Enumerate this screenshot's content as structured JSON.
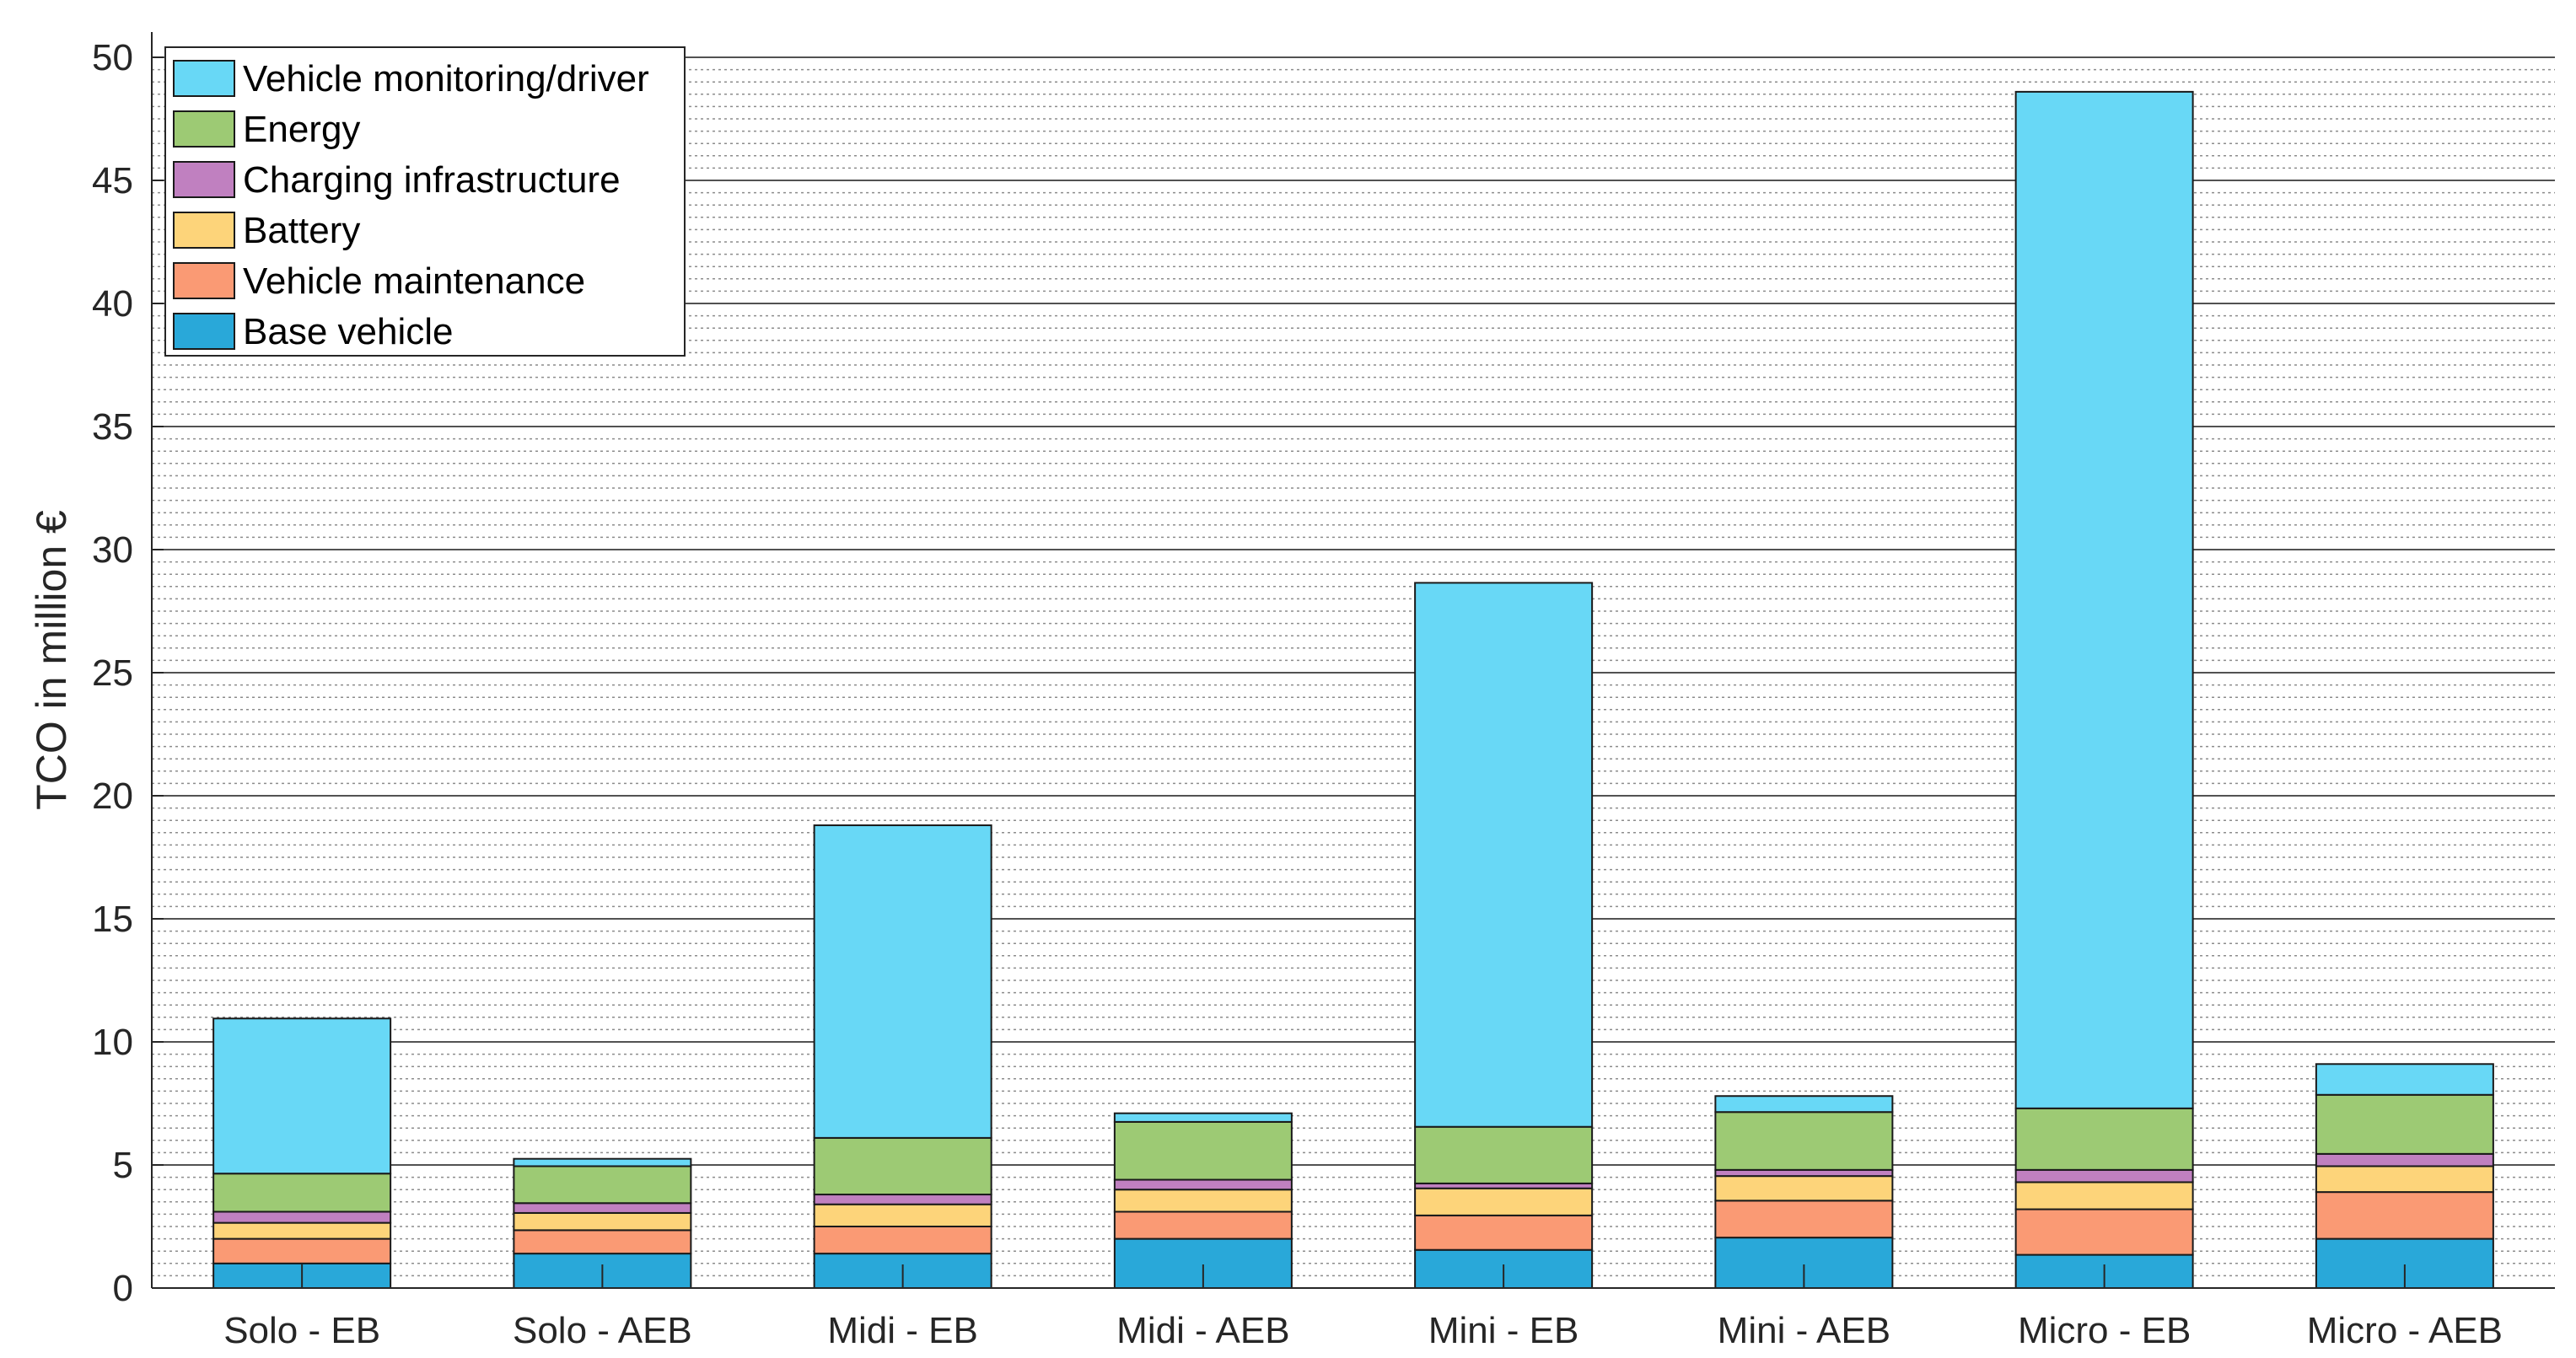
{
  "chart_data": {
    "type": "bar",
    "stacked": true,
    "title": "",
    "xlabel": "",
    "ylabel": "TCO in million €",
    "ylim": [
      0,
      50
    ],
    "yticks": [
      0,
      5,
      10,
      15,
      20,
      25,
      30,
      35,
      40,
      45,
      50
    ],
    "ytick_labels": [
      "0",
      "5",
      "10",
      "15",
      "20",
      "25",
      "30",
      "35",
      "40",
      "45",
      "50"
    ],
    "grid": true,
    "minor_grid": true,
    "legend_position": "top-left",
    "categories": [
      "Solo - EB",
      "Solo - AEB",
      "Midi - EB",
      "Midi - AEB",
      "Mini - EB",
      "Mini - AEB",
      "Micro - EB",
      "Micro - AEB"
    ],
    "series": [
      {
        "name": "Base vehicle",
        "color": "#29a8d9",
        "values": [
          1.0,
          1.4,
          1.4,
          2.0,
          1.55,
          2.05,
          1.35,
          2.0
        ]
      },
      {
        "name": "Vehicle maintenance",
        "color": "#fa9a74",
        "values": [
          1.0,
          0.95,
          1.1,
          1.1,
          1.4,
          1.5,
          1.85,
          1.9
        ]
      },
      {
        "name": "Battery",
        "color": "#fdd47a",
        "values": [
          0.65,
          0.7,
          0.9,
          0.9,
          1.1,
          1.0,
          1.1,
          1.05
        ]
      },
      {
        "name": "Charging infrastructure",
        "color": "#c080c0",
        "values": [
          0.45,
          0.4,
          0.4,
          0.4,
          0.2,
          0.25,
          0.5,
          0.5
        ]
      },
      {
        "name": "Energy",
        "color": "#9dca74",
        "values": [
          1.55,
          1.5,
          2.3,
          2.35,
          2.3,
          2.35,
          2.5,
          2.4
        ]
      },
      {
        "name": "Vehicle monitoring/driver",
        "color": "#68d8f6",
        "values": [
          6.3,
          0.3,
          12.7,
          0.35,
          22.1,
          0.65,
          41.3,
          1.25
        ]
      }
    ]
  }
}
